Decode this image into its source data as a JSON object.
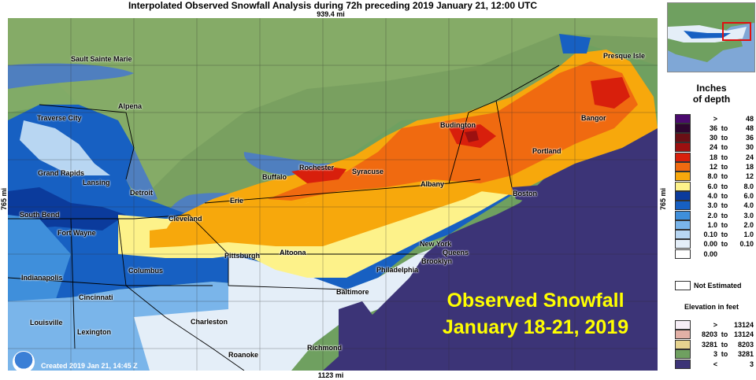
{
  "title": "Interpolated Observed Snowfall Analysis during 72h preceding 2019 January 21, 12:00 UTC",
  "scale": {
    "top": "939.4 mi",
    "bottom": "1123 mi",
    "left": "765 mi",
    "right": "765 mi"
  },
  "cities": [
    {
      "name": "Sault Sainte Marie"
    },
    {
      "name": "Alpena"
    },
    {
      "name": "Traverse City"
    },
    {
      "name": "Grand Rapids"
    },
    {
      "name": "Lansing"
    },
    {
      "name": "Detroit"
    },
    {
      "name": "South Bend"
    },
    {
      "name": "Fort Wayne"
    },
    {
      "name": "Indianapolis"
    },
    {
      "name": "Columbus"
    },
    {
      "name": "Cincinnati"
    },
    {
      "name": "Louisville"
    },
    {
      "name": "Lexington"
    },
    {
      "name": "Charleston"
    },
    {
      "name": "Roanoke"
    },
    {
      "name": "Richmond"
    },
    {
      "name": "Baltimore"
    },
    {
      "name": "Philadelphia"
    },
    {
      "name": "Pittsburgh"
    },
    {
      "name": "Altoona"
    },
    {
      "name": "Cleveland"
    },
    {
      "name": "Erie"
    },
    {
      "name": "Buffalo"
    },
    {
      "name": "Rochester"
    },
    {
      "name": "Syracuse"
    },
    {
      "name": "Albany"
    },
    {
      "name": "Budington"
    },
    {
      "name": "Boston"
    },
    {
      "name": "Portland"
    },
    {
      "name": "Bangor"
    },
    {
      "name": "Presque Isle"
    },
    {
      "name": "New York"
    },
    {
      "name": "Queens"
    },
    {
      "name": "Brooklyn"
    }
  ],
  "overlay": {
    "line1": "Observed Snowfall",
    "line2": "January 18-21, 2019"
  },
  "created": "Created 2019 Jan 21, 14:45 Z",
  "legend": {
    "title_line1": "Inches",
    "title_line2": "of depth",
    "snow_bins": [
      {
        "lo": ">",
        "to": "",
        "hi": "48",
        "color": "#4b0a6e"
      },
      {
        "lo": "36",
        "to": "to",
        "hi": "48",
        "color": "#2e0530"
      },
      {
        "lo": "30",
        "to": "to",
        "hi": "36",
        "color": "#6a0f15"
      },
      {
        "lo": "24",
        "to": "to",
        "hi": "30",
        "color": "#9c1010"
      },
      {
        "lo": "18",
        "to": "to",
        "hi": "24",
        "color": "#d81f0c"
      },
      {
        "lo": "12",
        "to": "to",
        "hi": "18",
        "color": "#f06a10"
      },
      {
        "lo": "8.0",
        "to": "to",
        "hi": "12",
        "color": "#f7a80c"
      },
      {
        "lo": "6.0",
        "to": "to",
        "hi": "8.0",
        "color": "#fdf28a"
      },
      {
        "lo": "4.0",
        "to": "to",
        "hi": "6.0",
        "color": "#0b3b9c"
      },
      {
        "lo": "3.0",
        "to": "to",
        "hi": "4.0",
        "color": "#1760c2"
      },
      {
        "lo": "2.0",
        "to": "to",
        "hi": "3.0",
        "color": "#3f8fdb"
      },
      {
        "lo": "1.0",
        "to": "to",
        "hi": "2.0",
        "color": "#7ab5ea"
      },
      {
        "lo": "0.10",
        "to": "to",
        "hi": "1.0",
        "color": "#b8d6f2"
      },
      {
        "lo": "0.00",
        "to": "to",
        "hi": "0.10",
        "color": "#e4eef8"
      },
      {
        "lo": "0.00",
        "to": "",
        "hi": "",
        "color": "#ffffff"
      }
    ],
    "not_estimated": "Not Estimated",
    "elevation_title": "Elevation in feet",
    "elev_bins": [
      {
        "lo": ">",
        "to": "",
        "hi": "13124",
        "color": "#f6eef6"
      },
      {
        "lo": "8203",
        "to": "to",
        "hi": "13124",
        "color": "#e2b0a6"
      },
      {
        "lo": "3281",
        "to": "to",
        "hi": "8203",
        "color": "#e6d38f"
      },
      {
        "lo": "3",
        "to": "to",
        "hi": "3281",
        "color": "#6fa060"
      },
      {
        "lo": "<",
        "to": "",
        "hi": "3",
        "color": "#3c3477"
      }
    ]
  }
}
